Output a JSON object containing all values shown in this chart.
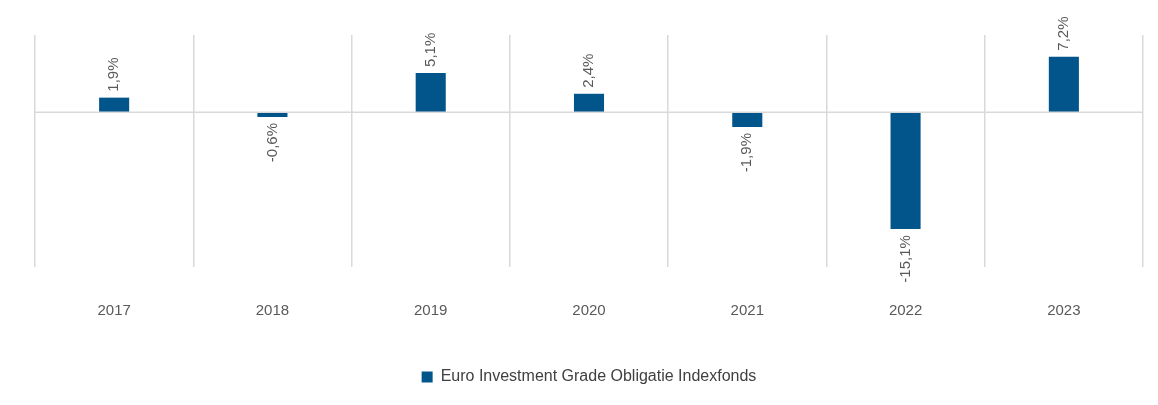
{
  "chart_data": {
    "type": "bar",
    "categories": [
      "2017",
      "2018",
      "2019",
      "2020",
      "2021",
      "2022",
      "2023"
    ],
    "series": [
      {
        "name": "Euro Investment Grade Obligatie Indexfonds",
        "color": "#01558b",
        "values": [
          1.9,
          -0.6,
          5.1,
          2.4,
          -1.9,
          -15.1,
          7.2
        ],
        "value_labels": [
          "1,9%",
          "-0,6%",
          "5,1%",
          "2,4%",
          "-1,9%",
          "-15,1%",
          "7,2%"
        ]
      }
    ],
    "ylim": [
      -20,
      10
    ],
    "tick_labels": "x",
    "grid": "x",
    "legend": "bottom"
  }
}
